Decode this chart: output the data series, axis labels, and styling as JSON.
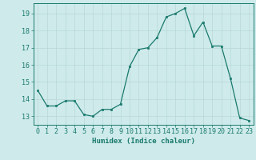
{
  "x": [
    0,
    1,
    2,
    3,
    4,
    5,
    6,
    7,
    8,
    9,
    10,
    11,
    12,
    13,
    14,
    15,
    16,
    17,
    18,
    19,
    20,
    21,
    22,
    23
  ],
  "y": [
    14.5,
    13.6,
    13.6,
    13.9,
    13.9,
    13.1,
    13.0,
    13.4,
    13.4,
    13.7,
    15.9,
    16.9,
    17.0,
    17.6,
    18.8,
    19.0,
    19.3,
    17.7,
    18.5,
    17.1,
    17.1,
    15.2,
    12.9,
    12.75
  ],
  "xlabel": "Humidex (Indice chaleur)",
  "xlim": [
    -0.5,
    23.5
  ],
  "ylim": [
    12.5,
    19.6
  ],
  "yticks": [
    13,
    14,
    15,
    16,
    17,
    18,
    19
  ],
  "xticks": [
    0,
    1,
    2,
    3,
    4,
    5,
    6,
    7,
    8,
    9,
    10,
    11,
    12,
    13,
    14,
    15,
    16,
    17,
    18,
    19,
    20,
    21,
    22,
    23
  ],
  "line_color": "#1a7a6e",
  "marker_color": "#1a7a6e",
  "bg_color": "#ceeaea",
  "grid_color": "#b8d8d8",
  "axis_color": "#1a7a6e",
  "tick_color": "#1a7a6e",
  "label_color": "#1a7a6e",
  "xlabel_fontsize": 6.5,
  "tick_fontsize": 6.0
}
